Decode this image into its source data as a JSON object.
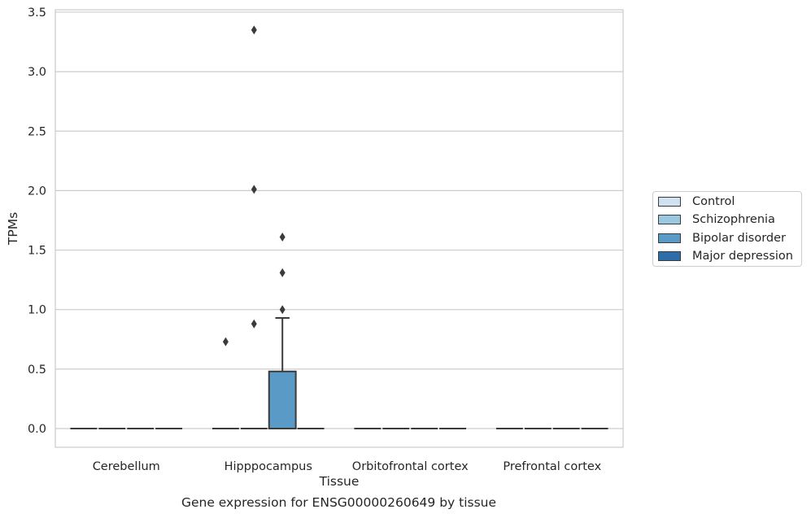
{
  "chart_data": {
    "type": "box",
    "title": "",
    "caption": "Gene expression for ENSG00000260649 by tissue",
    "xlabel": "Tissue",
    "ylabel": "TPMs",
    "ylim": [
      -0.16,
      3.53
    ],
    "yticks": [
      "0.0",
      "0.5",
      "1.0",
      "1.5",
      "2.0",
      "2.5",
      "3.0",
      "3.5"
    ],
    "categories": [
      "Cerebellum",
      "Hipppocampus",
      "Orbitofrontal cortex",
      "Prefrontal cortex"
    ],
    "grid": "horizontal",
    "legend_position": "right",
    "series": [
      {
        "name": "Control",
        "color": "#d0e1f2",
        "boxes": [
          {
            "category": "Cerebellum",
            "q1": 0,
            "median": 0,
            "q3": 0,
            "whisker_low": 0,
            "whisker_high": 0,
            "outliers": []
          },
          {
            "category": "Hipppocampus",
            "q1": 0,
            "median": 0,
            "q3": 0,
            "whisker_low": 0,
            "whisker_high": 0,
            "outliers": [
              0.73
            ]
          },
          {
            "category": "Orbitofrontal cortex",
            "q1": 0,
            "median": 0,
            "q3": 0,
            "whisker_low": 0,
            "whisker_high": 0,
            "outliers": []
          },
          {
            "category": "Prefrontal cortex",
            "q1": 0,
            "median": 0,
            "q3": 0,
            "whisker_low": 0,
            "whisker_high": 0,
            "outliers": []
          }
        ]
      },
      {
        "name": "Schizophrenia",
        "color": "#9ac8e0",
        "boxes": [
          {
            "category": "Cerebellum",
            "q1": 0,
            "median": 0,
            "q3": 0,
            "whisker_low": 0,
            "whisker_high": 0,
            "outliers": []
          },
          {
            "category": "Hipppocampus",
            "q1": 0,
            "median": 0,
            "q3": 0,
            "whisker_low": 0,
            "whisker_high": 0,
            "outliers": [
              3.35,
              2.01,
              0.88
            ]
          },
          {
            "category": "Orbitofrontal cortex",
            "q1": 0,
            "median": 0,
            "q3": 0,
            "whisker_low": 0,
            "whisker_high": 0,
            "outliers": []
          },
          {
            "category": "Prefrontal cortex",
            "q1": 0,
            "median": 0,
            "q3": 0,
            "whisker_low": 0,
            "whisker_high": 0,
            "outliers": []
          }
        ]
      },
      {
        "name": "Bipolar disorder",
        "color": "#5a9ac6",
        "boxes": [
          {
            "category": "Cerebellum",
            "q1": 0,
            "median": 0,
            "q3": 0,
            "whisker_low": 0,
            "whisker_high": 0,
            "outliers": []
          },
          {
            "category": "Hipppocampus",
            "q1": 0,
            "median": 0,
            "q3": 0.48,
            "whisker_low": 0,
            "whisker_high": 0.93,
            "outliers": [
              1.61,
              1.31,
              1.0
            ]
          },
          {
            "category": "Orbitofrontal cortex",
            "q1": 0,
            "median": 0,
            "q3": 0,
            "whisker_low": 0,
            "whisker_high": 0,
            "outliers": []
          },
          {
            "category": "Prefrontal cortex",
            "q1": 0,
            "median": 0,
            "q3": 0,
            "whisker_low": 0,
            "whisker_high": 0,
            "outliers": []
          }
        ]
      },
      {
        "name": "Major depression",
        "color": "#2d6da8",
        "boxes": [
          {
            "category": "Cerebellum",
            "q1": 0,
            "median": 0,
            "q3": 0,
            "whisker_low": 0,
            "whisker_high": 0,
            "outliers": []
          },
          {
            "category": "Hipppocampus",
            "q1": 0,
            "median": 0,
            "q3": 0,
            "whisker_low": 0,
            "whisker_high": 0,
            "outliers": []
          },
          {
            "category": "Orbitofrontal cortex",
            "q1": 0,
            "median": 0,
            "q3": 0,
            "whisker_low": 0,
            "whisker_high": 0,
            "outliers": []
          },
          {
            "category": "Prefrontal cortex",
            "q1": 0,
            "median": 0,
            "q3": 0,
            "whisker_low": 0,
            "whisker_high": 0,
            "outliers": []
          }
        ]
      }
    ]
  }
}
